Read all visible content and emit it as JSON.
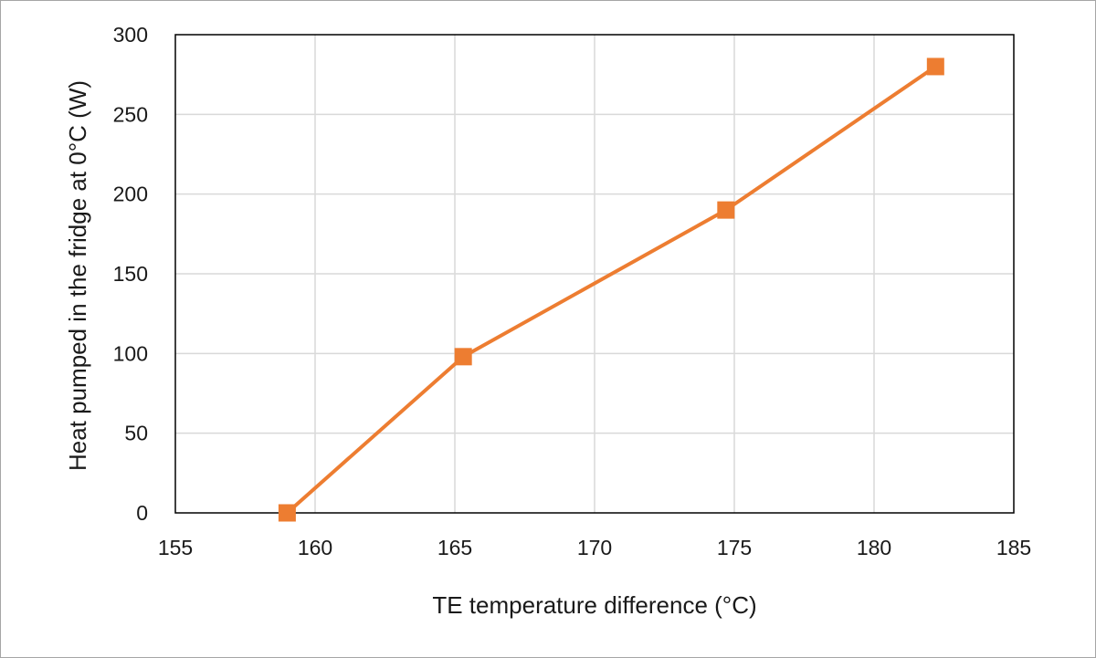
{
  "chart_data": {
    "type": "line",
    "title": "",
    "xlabel": "TE temperature difference (°C)",
    "ylabel": "Heat pumped in the fridge at 0°C (W)",
    "xlim": [
      155,
      185
    ],
    "ylim": [
      0,
      300
    ],
    "xticks": [
      155,
      160,
      165,
      170,
      175,
      180,
      185
    ],
    "yticks": [
      0,
      50,
      100,
      150,
      200,
      250,
      300
    ],
    "grid": true,
    "legend": "none",
    "series": [
      {
        "color": "#ED7D31",
        "marker": "square",
        "x": [
          159.0,
          165.3,
          174.7,
          182.2
        ],
        "y": [
          0,
          98,
          190,
          280
        ]
      }
    ]
  }
}
